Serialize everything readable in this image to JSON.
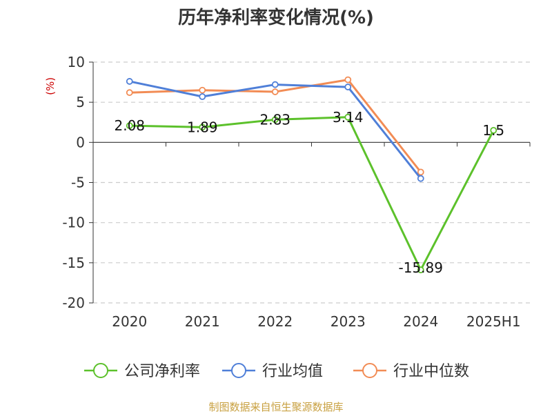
{
  "chart_data": {
    "type": "line",
    "title": "历年净利率变化情况(%)",
    "ylabel": "(%)",
    "categories": [
      "2020",
      "2021",
      "2022",
      "2023",
      "2024",
      "2025H1"
    ],
    "ylim": [
      -20,
      10
    ],
    "yticks": [
      10,
      5,
      0,
      -5,
      -10,
      -15,
      -20
    ],
    "grid": true,
    "legend_position": "bottom",
    "series": [
      {
        "name": "公司净利率",
        "color": "#5cc12b",
        "values": [
          2.08,
          1.89,
          2.83,
          3.14,
          -15.89,
          1.5
        ],
        "labels": [
          "2.08",
          "1.89",
          "2.83",
          "3.14",
          "-15.89",
          "1.5"
        ]
      },
      {
        "name": "行业均值",
        "color": "#4f7fd8",
        "values": [
          7.6,
          5.7,
          7.2,
          6.9,
          -4.5,
          null
        ]
      },
      {
        "name": "行业中位数",
        "color": "#f28c55",
        "values": [
          6.2,
          6.5,
          6.3,
          7.8,
          -3.7,
          null
        ]
      }
    ]
  },
  "source": "制图数据来自恒生聚源数据库",
  "colors": {
    "axis": "#333333",
    "grid": "#cccccc",
    "ylabel": "#cc0000",
    "source": "#c8a040"
  }
}
